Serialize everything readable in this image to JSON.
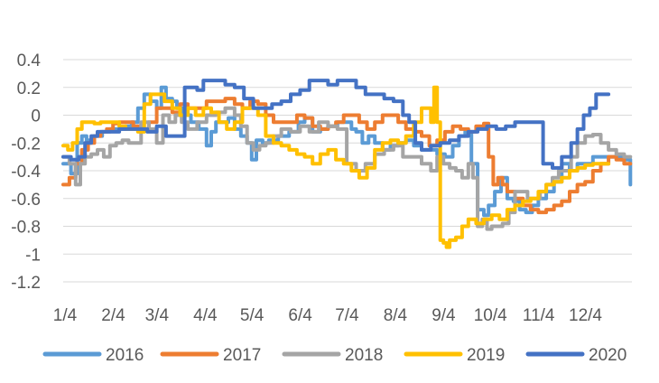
{
  "chart_data": {
    "type": "line",
    "title": "",
    "xlabel": "",
    "ylabel": "",
    "ylim": [
      -1.2,
      0.4
    ],
    "yticks": [
      0.4,
      0.2,
      0,
      -0.2,
      -0.4,
      -0.6,
      -0.8,
      -1,
      -1.2
    ],
    "ytick_labels": [
      "0.4",
      "0.2",
      "0",
      "-0.2",
      "-0.4",
      "-0.6",
      "-0.8",
      "-1",
      "-1.2"
    ],
    "xlim": [
      0,
      365
    ],
    "x_tick_positions": [
      0,
      31,
      59,
      90,
      120,
      151,
      181,
      212,
      243,
      273,
      304,
      334
    ],
    "x_tick_labels": [
      "1/4",
      "2/4",
      "3/4",
      "4/4",
      "5/4",
      "6/4",
      "7/4",
      "8/4",
      "9/4",
      "10/4",
      "11/4",
      "12/4"
    ],
    "grid": "horizontal",
    "legend": "bottom",
    "series": [
      {
        "name": "2016",
        "color": "#5B9BD5",
        "x": [
          0,
          5,
          9,
          12,
          15,
          20,
          25,
          30,
          36,
          40,
          44,
          48,
          52,
          56,
          60,
          63,
          66,
          70,
          73,
          77,
          82,
          87,
          92,
          95,
          98,
          102,
          106,
          110,
          114,
          118,
          121,
          124,
          128,
          132,
          138,
          145,
          151,
          155,
          160,
          165,
          170,
          176,
          182,
          185,
          188,
          192,
          196,
          200,
          205,
          210,
          215,
          220,
          225,
          230,
          235,
          240,
          245,
          250,
          254,
          258,
          262,
          266,
          270,
          273,
          277,
          281,
          285,
          289,
          293,
          297,
          301,
          305,
          310,
          315,
          320,
          325,
          330,
          335,
          340,
          345,
          350,
          355,
          358,
          361,
          364
        ],
        "y": [
          -0.35,
          -0.42,
          -0.2,
          -0.15,
          -0.18,
          -0.15,
          -0.12,
          -0.1,
          -0.1,
          -0.08,
          -0.05,
          0.05,
          0.15,
          0.1,
          0.05,
          0.2,
          0.12,
          0.1,
          0.05,
          0.0,
          -0.05,
          -0.1,
          -0.22,
          -0.12,
          -0.05,
          -0.05,
          -0.02,
          -0.1,
          -0.15,
          -0.2,
          -0.32,
          -0.18,
          -0.2,
          -0.18,
          -0.15,
          -0.12,
          -0.05,
          -0.02,
          -0.12,
          -0.1,
          -0.08,
          -0.05,
          -0.05,
          -0.1,
          -0.12,
          -0.2,
          -0.15,
          -0.2,
          -0.25,
          -0.22,
          -0.2,
          -0.18,
          -0.22,
          -0.25,
          -0.25,
          -0.28,
          -0.3,
          -0.22,
          -0.15,
          -0.12,
          -0.35,
          -0.68,
          -0.72,
          -0.65,
          -0.55,
          -0.45,
          -0.6,
          -0.62,
          -0.68,
          -0.7,
          -0.65,
          -0.6,
          -0.55,
          -0.48,
          -0.35,
          -0.4,
          -0.35,
          -0.35,
          -0.3,
          -0.3,
          -0.3,
          -0.3,
          -0.32,
          -0.32,
          -0.5
        ]
      },
      {
        "name": "2017",
        "color": "#ED7D31",
        "x": [
          0,
          4,
          8,
          12,
          16,
          20,
          24,
          28,
          32,
          36,
          40,
          45,
          50,
          55,
          60,
          65,
          70,
          75,
          80,
          86,
          92,
          98,
          104,
          110,
          115,
          120,
          125,
          130,
          135,
          140,
          145,
          150,
          155,
          160,
          165,
          170,
          175,
          180,
          185,
          190,
          195,
          200,
          205,
          210,
          215,
          220,
          225,
          230,
          235,
          240,
          245,
          250,
          255,
          260,
          265,
          270,
          273,
          276,
          279,
          282,
          285,
          290,
          295,
          300,
          305,
          310,
          315,
          320,
          325,
          330,
          335,
          340,
          345,
          350,
          355,
          360,
          364
        ],
        "y": [
          -0.5,
          -0.45,
          -0.35,
          -0.25,
          -0.2,
          -0.15,
          -0.12,
          -0.1,
          -0.06,
          -0.05,
          -0.05,
          -0.08,
          -0.1,
          -0.05,
          0.05,
          0.05,
          0.02,
          0.08,
          0.05,
          0.05,
          0.1,
          0.1,
          0.12,
          0.08,
          0.05,
          0.1,
          0.08,
          0.0,
          -0.05,
          -0.05,
          -0.05,
          0.0,
          -0.02,
          -0.08,
          -0.1,
          -0.08,
          -0.05,
          0.0,
          0.0,
          -0.05,
          -0.1,
          -0.05,
          0.0,
          0.0,
          -0.05,
          -0.1,
          -0.12,
          -0.15,
          -0.22,
          -0.18,
          -0.12,
          -0.08,
          -0.1,
          -0.12,
          -0.08,
          -0.06,
          -0.3,
          -0.5,
          -0.45,
          -0.5,
          -0.55,
          -0.6,
          -0.65,
          -0.68,
          -0.7,
          -0.68,
          -0.65,
          -0.62,
          -0.55,
          -0.5,
          -0.48,
          -0.4,
          -0.35,
          -0.3,
          -0.32,
          -0.35,
          -0.35
        ]
      },
      {
        "name": "2018",
        "color": "#A5A5A5",
        "x": [
          0,
          4,
          8,
          11,
          14,
          18,
          22,
          26,
          30,
          34,
          38,
          42,
          46,
          50,
          55,
          60,
          64,
          68,
          72,
          76,
          80,
          86,
          92,
          98,
          104,
          110,
          114,
          118,
          122,
          126,
          130,
          135,
          140,
          146,
          152,
          158,
          164,
          170,
          176,
          182,
          188,
          194,
          200,
          206,
          212,
          218,
          224,
          230,
          236,
          240,
          244,
          248,
          252,
          256,
          260,
          263,
          266,
          269,
          272,
          275,
          278,
          282,
          286,
          290,
          294,
          298,
          302,
          306,
          310,
          314,
          318,
          322,
          326,
          330,
          335,
          340,
          345,
          350,
          355,
          360,
          364
        ],
        "y": [
          -0.3,
          -0.35,
          -0.5,
          -0.35,
          -0.3,
          -0.28,
          -0.25,
          -0.3,
          -0.22,
          -0.2,
          -0.18,
          -0.2,
          -0.2,
          -0.05,
          -0.1,
          -0.2,
          0.0,
          -0.05,
          0.0,
          -0.05,
          -0.1,
          -0.05,
          0.0,
          0.02,
          0.05,
          0.0,
          -0.08,
          -0.2,
          -0.25,
          -0.22,
          -0.2,
          -0.15,
          -0.1,
          -0.12,
          -0.08,
          -0.12,
          -0.05,
          -0.08,
          -0.1,
          -0.35,
          -0.4,
          -0.35,
          -0.28,
          -0.25,
          -0.22,
          -0.3,
          -0.3,
          -0.35,
          -0.4,
          -0.3,
          -0.35,
          -0.38,
          -0.4,
          -0.45,
          -0.35,
          -0.45,
          -0.8,
          -0.75,
          -0.82,
          -0.8,
          -0.8,
          -0.78,
          -0.7,
          -0.55,
          -0.55,
          -0.6,
          -0.6,
          -0.55,
          -0.5,
          -0.45,
          -0.4,
          -0.4,
          -0.3,
          -0.2,
          -0.15,
          -0.14,
          -0.2,
          -0.25,
          -0.28,
          -0.3,
          -0.3
        ]
      },
      {
        "name": "2019",
        "color": "#FFC000",
        "x": [
          0,
          3,
          6,
          9,
          12,
          16,
          20,
          24,
          28,
          32,
          36,
          40,
          44,
          48,
          52,
          56,
          60,
          65,
          70,
          75,
          80,
          85,
          90,
          95,
          100,
          105,
          110,
          115,
          120,
          125,
          130,
          135,
          140,
          145,
          150,
          155,
          160,
          165,
          170,
          175,
          180,
          185,
          190,
          195,
          200,
          205,
          210,
          215,
          220,
          225,
          230,
          234,
          236,
          238,
          240,
          242,
          244,
          246,
          248,
          252,
          256,
          260,
          265,
          270,
          275,
          280,
          285,
          290,
          295,
          300,
          305,
          310,
          315,
          320,
          325,
          330,
          335,
          340,
          345,
          350
        ],
        "y": [
          -0.22,
          -0.25,
          -0.2,
          -0.1,
          -0.05,
          -0.05,
          -0.06,
          -0.05,
          -0.05,
          -0.05,
          -0.08,
          -0.1,
          -0.1,
          -0.12,
          0.08,
          0.15,
          0.15,
          0.1,
          0.05,
          0.0,
          0.05,
          0.0,
          0.05,
          0.02,
          -0.05,
          -0.1,
          -0.05,
          0.05,
          0.05,
          0.0,
          -0.15,
          -0.2,
          -0.22,
          -0.25,
          -0.28,
          -0.3,
          -0.35,
          -0.28,
          -0.25,
          -0.32,
          -0.35,
          -0.4,
          -0.45,
          -0.38,
          -0.25,
          -0.2,
          -0.18,
          -0.2,
          -0.15,
          -0.05,
          0.05,
          0.05,
          -0.05,
          0.2,
          -0.05,
          -0.9,
          -0.92,
          -0.95,
          -0.9,
          -0.88,
          -0.8,
          -0.75,
          -0.78,
          -0.75,
          -0.72,
          -0.75,
          -0.68,
          -0.65,
          -0.62,
          -0.6,
          -0.55,
          -0.5,
          -0.48,
          -0.45,
          -0.4,
          -0.38,
          -0.36,
          -0.35,
          -0.35,
          -0.35
        ]
      },
      {
        "name": "2020",
        "color": "#4472C4",
        "x": [
          0,
          5,
          10,
          14,
          18,
          22,
          26,
          30,
          36,
          42,
          48,
          54,
          60,
          66,
          72,
          78,
          82,
          86,
          90,
          94,
          98,
          104,
          110,
          116,
          122,
          128,
          134,
          140,
          146,
          152,
          158,
          164,
          170,
          176,
          182,
          188,
          194,
          200,
          206,
          212,
          218,
          222,
          226,
          230,
          236,
          242,
          248,
          254,
          260,
          266,
          272,
          278,
          284,
          290,
          296,
          302,
          308,
          314,
          320,
          326,
          330,
          334,
          338,
          342,
          346,
          350
        ],
        "y": [
          -0.3,
          -0.32,
          -0.3,
          -0.2,
          -0.15,
          -0.12,
          -0.12,
          -0.12,
          -0.1,
          -0.1,
          -0.1,
          -0.12,
          -0.08,
          -0.15,
          -0.15,
          0.2,
          0.2,
          0.18,
          0.25,
          0.25,
          0.25,
          0.22,
          0.2,
          0.12,
          0.05,
          0.05,
          0.08,
          0.1,
          0.15,
          0.18,
          0.25,
          0.25,
          0.22,
          0.25,
          0.25,
          0.2,
          0.15,
          0.15,
          0.12,
          0.1,
          0.0,
          -0.05,
          -0.2,
          -0.25,
          -0.22,
          -0.2,
          -0.18,
          -0.15,
          -0.12,
          -0.1,
          -0.08,
          -0.1,
          -0.08,
          -0.05,
          -0.05,
          -0.05,
          -0.35,
          -0.38,
          -0.3,
          -0.2,
          -0.1,
          0.0,
          0.05,
          0.15,
          0.15,
          0.15
        ]
      }
    ]
  }
}
